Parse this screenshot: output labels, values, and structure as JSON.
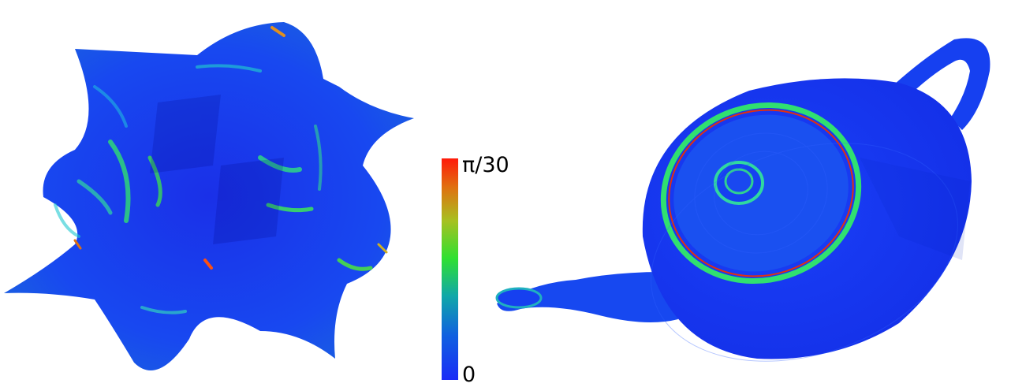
{
  "colorbar": {
    "max_label": "π/30",
    "min_label": "0",
    "gradient_colors": [
      "#1a2cf7",
      "#1060e0",
      "#10a8a8",
      "#30e030",
      "#a8c020",
      "#e07010",
      "#ff1a0a"
    ]
  },
  "panels": [
    {
      "name": "left-surface",
      "description_color": "#1a3cf0"
    },
    {
      "name": "right-teapot",
      "description_color": "#1638f8"
    }
  ]
}
